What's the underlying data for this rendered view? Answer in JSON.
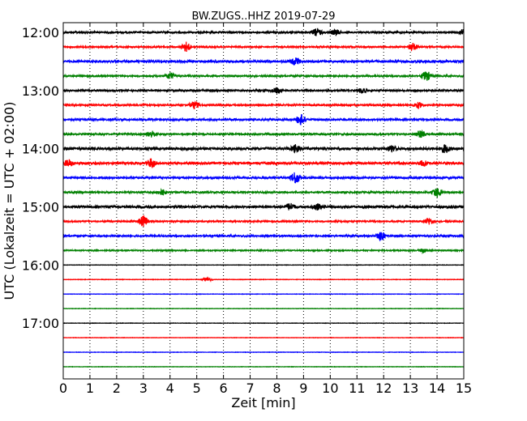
{
  "chart_data": {
    "type": "line",
    "title": "BW.ZUGS..HHZ 2019-07-29",
    "xlabel": "Zeit  [min]",
    "ylabel": "UTC (Lokalzeit = UTC + 02:00)",
    "xlim": [
      0,
      15
    ],
    "xticks": [
      "0",
      "1",
      "2",
      "3",
      "4",
      "5",
      "6",
      "7",
      "8",
      "9",
      "10",
      "11",
      "12",
      "13",
      "14",
      "15"
    ],
    "yticks": [
      "12:00",
      "13:00",
      "14:00",
      "15:00",
      "16:00",
      "17:00"
    ],
    "grid": true,
    "colors": [
      "#000000",
      "#ff0000",
      "#0000ff",
      "#008000"
    ],
    "series": [
      {
        "start": "12:00",
        "amplitude": 1.0,
        "events": [
          [
            9.5,
            1.6
          ],
          [
            10.2,
            1.2
          ],
          [
            15.0,
            1.4
          ]
        ]
      },
      {
        "start": "12:15",
        "amplitude": 0.8,
        "events": [
          [
            4.6,
            2.0
          ],
          [
            13.1,
            1.6
          ]
        ]
      },
      {
        "start": "12:30",
        "amplitude": 1.2,
        "events": [
          [
            8.7,
            1.4
          ]
        ]
      },
      {
        "start": "12:45",
        "amplitude": 0.9,
        "events": [
          [
            4.0,
            1.4
          ],
          [
            13.6,
            2.0
          ]
        ]
      },
      {
        "start": "13:00",
        "amplitude": 1.0,
        "events": [
          [
            8.0,
            1.2
          ],
          [
            11.2,
            1.0
          ]
        ]
      },
      {
        "start": "13:15",
        "amplitude": 0.9,
        "events": [
          [
            4.9,
            1.6
          ],
          [
            13.3,
            1.2
          ]
        ]
      },
      {
        "start": "13:30",
        "amplitude": 1.1,
        "events": [
          [
            8.9,
            2.2
          ]
        ]
      },
      {
        "start": "13:45",
        "amplitude": 0.9,
        "events": [
          [
            3.3,
            1.4
          ],
          [
            13.4,
            1.6
          ]
        ]
      },
      {
        "start": "14:00",
        "amplitude": 1.5,
        "events": [
          [
            8.7,
            1.4
          ],
          [
            12.3,
            1.2
          ],
          [
            14.3,
            1.6
          ]
        ]
      },
      {
        "start": "14:15",
        "amplitude": 1.3,
        "events": [
          [
            0.2,
            1.4
          ],
          [
            3.3,
            2.0
          ],
          [
            13.5,
            1.2
          ]
        ]
      },
      {
        "start": "14:30",
        "amplitude": 1.2,
        "events": [
          [
            8.7,
            2.4
          ]
        ]
      },
      {
        "start": "14:45",
        "amplitude": 0.9,
        "events": [
          [
            3.7,
            1.2
          ],
          [
            14.0,
            2.0
          ]
        ]
      },
      {
        "start": "15:00",
        "amplitude": 1.3,
        "events": [
          [
            8.5,
            1.4
          ],
          [
            9.5,
            1.2
          ]
        ]
      },
      {
        "start": "15:15",
        "amplitude": 0.8,
        "events": [
          [
            3.0,
            2.4
          ],
          [
            13.7,
            1.4
          ]
        ]
      },
      {
        "start": "15:30",
        "amplitude": 0.9,
        "events": [
          [
            11.9,
            2.0
          ]
        ]
      },
      {
        "start": "15:45",
        "amplitude": 0.6,
        "events": [
          [
            13.5,
            0.9
          ]
        ]
      },
      {
        "start": "16:00",
        "amplitude": 0.2,
        "events": []
      },
      {
        "start": "16:15",
        "amplitude": 0.25,
        "events": [
          [
            5.4,
            1.0
          ]
        ]
      },
      {
        "start": "16:30",
        "amplitude": 0.2,
        "events": []
      },
      {
        "start": "16:45",
        "amplitude": 0.2,
        "events": []
      },
      {
        "start": "17:00",
        "amplitude": 0.2,
        "events": []
      },
      {
        "start": "17:15",
        "amplitude": 0.2,
        "events": []
      },
      {
        "start": "17:30",
        "amplitude": 0.2,
        "events": []
      },
      {
        "start": "17:45",
        "amplitude": 0.2,
        "events": []
      }
    ]
  }
}
